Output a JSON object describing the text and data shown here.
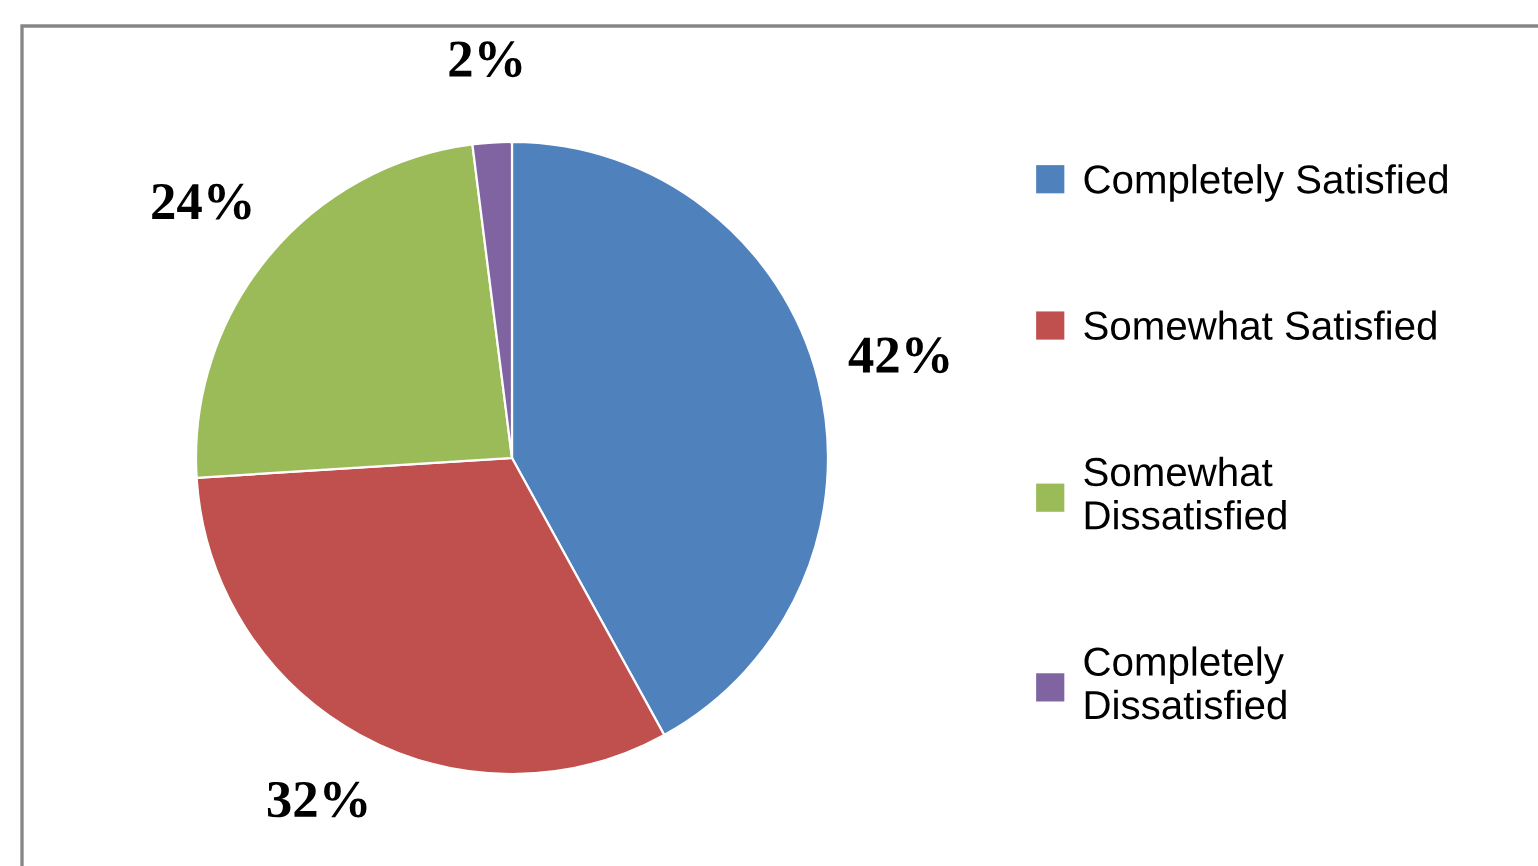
{
  "chart_data": {
    "type": "pie",
    "categories": [
      "Completely Satisfied",
      "Somewhat Satisfied",
      "Somewhat Dissatisfied",
      "Completely Dissatisfied"
    ],
    "values": [
      42,
      32,
      24,
      2
    ],
    "colors": [
      "#4f81bd",
      "#c0504d",
      "#9bbb59",
      "#8064a2"
    ],
    "value_labels": [
      "42%",
      "32%",
      "24%",
      "2%"
    ],
    "legend": "right"
  }
}
